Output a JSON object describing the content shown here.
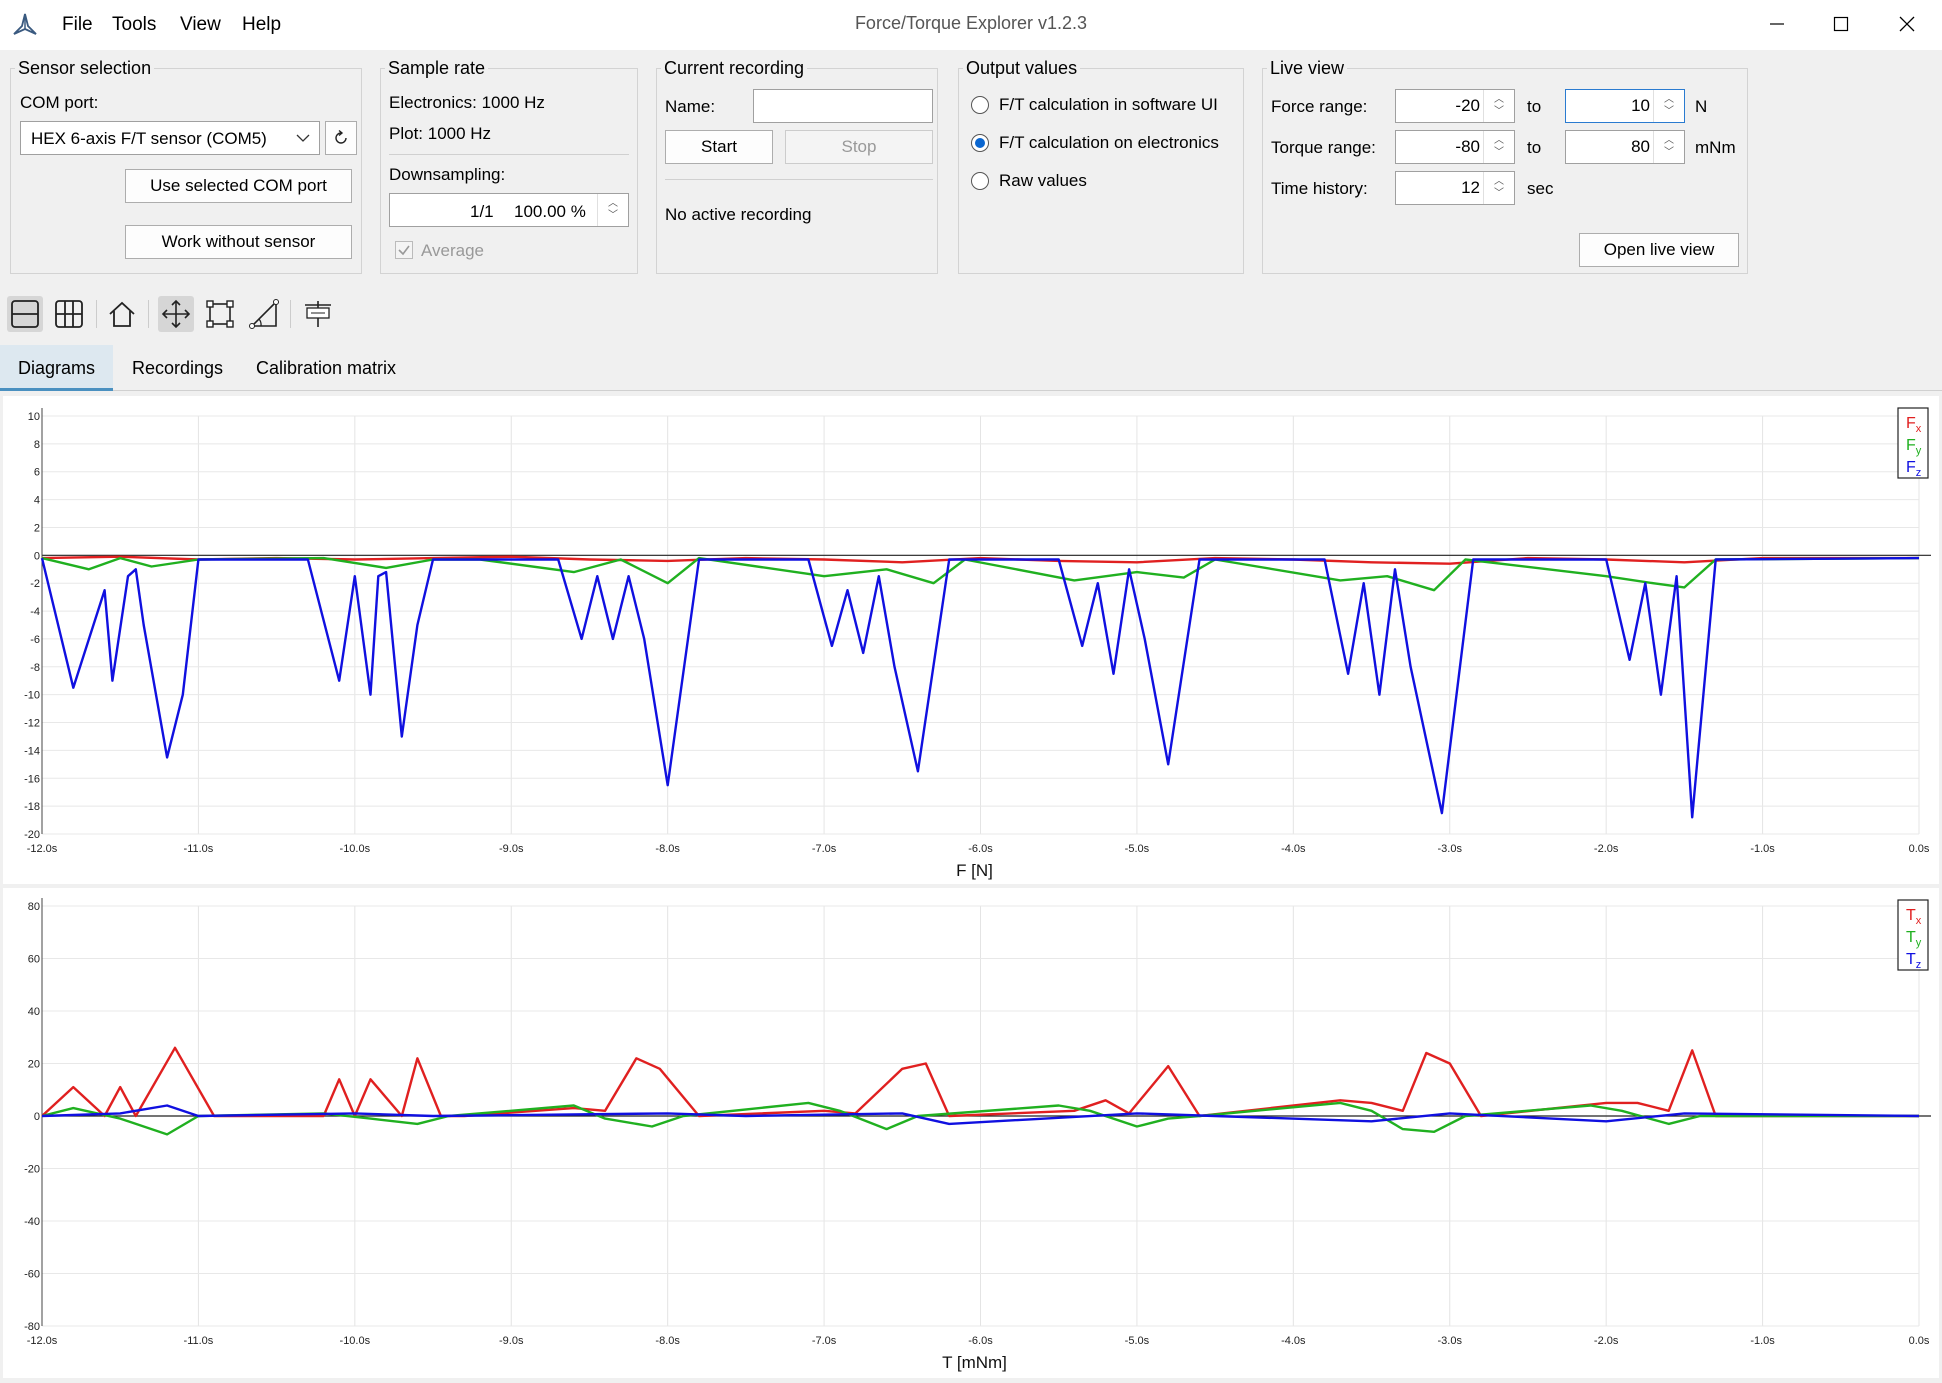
{
  "window": {
    "title": "Force/Torque Explorer v1.2.3",
    "menu": [
      "File",
      "Tools",
      "View",
      "Help"
    ]
  },
  "sensor": {
    "title": "Sensor selection",
    "com_label": "COM port:",
    "com_value": "HEX 6-axis F/T sensor (COM5)",
    "use_btn": "Use selected COM port",
    "work_btn": "Work without sensor"
  },
  "sample": {
    "title": "Sample rate",
    "electronics": "Electronics: 1000 Hz",
    "plot": "Plot: 1000 Hz",
    "downsampling_label": "Downsampling:",
    "downsampling_ratio": "1/1",
    "downsampling_pct": "100.00 %",
    "average_label": "Average"
  },
  "recording": {
    "title": "Current recording",
    "name_label": "Name:",
    "name_value": "",
    "start": "Start",
    "stop": "Stop",
    "status": "No active recording"
  },
  "output": {
    "title": "Output values",
    "options": [
      "F/T calculation in software UI",
      "F/T calculation on electronics",
      "Raw values"
    ],
    "selected": 1
  },
  "live": {
    "title": "Live view",
    "force_label": "Force range:",
    "force_min": "-20",
    "force_max": "10",
    "force_unit": "N",
    "torque_label": "Torque range:",
    "torque_min": "-80",
    "torque_max": "80",
    "torque_unit": "mNm",
    "time_label": "Time history:",
    "time_value": "12",
    "time_unit": "sec",
    "to": "to",
    "open_btn": "Open live view"
  },
  "toolbar_icons": [
    "layout-rows-icon",
    "layout-grid-icon",
    "home-icon",
    "pan-icon",
    "zoom-rect-icon",
    "measure-icon",
    "coordinates-icon"
  ],
  "tabs": [
    "Diagrams",
    "Recordings",
    "Calibration matrix"
  ],
  "colors": {
    "x": "#e02020",
    "y": "#20b020",
    "z": "#1010e0"
  },
  "chart_data": [
    {
      "type": "line",
      "xlabel": "F [N]",
      "x_ticks": [
        "-12.0s",
        "-11.0s",
        "-10.0s",
        "-9.0s",
        "-8.0s",
        "-7.0s",
        "-6.0s",
        "-5.0s",
        "-4.0s",
        "-3.0s",
        "-2.0s",
        "-1.0s",
        "0.0s"
      ],
      "y_ticks": [
        "10",
        "8",
        "6",
        "4",
        "2",
        "0",
        "-2",
        "-4",
        "-6",
        "-8",
        "-10",
        "-12",
        "-14",
        "-16",
        "-18",
        "-20"
      ],
      "xlim": [
        -12,
        0
      ],
      "ylim": [
        -20,
        10
      ],
      "legend": {
        "position": "top-right",
        "entries": [
          {
            "label": "F",
            "sub": "x"
          },
          {
            "label": "F",
            "sub": "y"
          },
          {
            "label": "F",
            "sub": "z"
          }
        ]
      },
      "series": [
        {
          "name": "Fx",
          "x": [
            -12,
            -11.5,
            -11.0,
            -10.5,
            -10.0,
            -9.5,
            -9.0,
            -8.5,
            -8.0,
            -7.5,
            -7.0,
            -6.5,
            -6.0,
            -5.5,
            -5.0,
            -4.5,
            -4.0,
            -3.5,
            -3.0,
            -2.5,
            -2.0,
            -1.5,
            -1.0,
            0
          ],
          "y": [
            -0.2,
            -0.1,
            -0.3,
            -0.2,
            -0.3,
            -0.2,
            -0.1,
            -0.3,
            -0.4,
            -0.2,
            -0.3,
            -0.5,
            -0.2,
            -0.4,
            -0.5,
            -0.2,
            -0.3,
            -0.5,
            -0.6,
            -0.2,
            -0.3,
            -0.5,
            -0.2,
            -0.2
          ]
        },
        {
          "name": "Fy",
          "x": [
            -12,
            -11.7,
            -11.5,
            -11.3,
            -11.0,
            -10.2,
            -9.8,
            -9.5,
            -9.2,
            -8.6,
            -8.3,
            -8.0,
            -7.8,
            -7.0,
            -6.6,
            -6.3,
            -6.1,
            -5.4,
            -5.0,
            -4.7,
            -4.5,
            -3.7,
            -3.4,
            -3.1,
            -2.9,
            -2.0,
            -1.7,
            -1.5,
            -1.3,
            0
          ],
          "y": [
            -0.2,
            -1.0,
            -0.2,
            -0.8,
            -0.3,
            -0.2,
            -0.9,
            -0.3,
            -0.3,
            -1.2,
            -0.3,
            -2.0,
            -0.2,
            -1.5,
            -1.0,
            -2.0,
            -0.3,
            -1.8,
            -1.2,
            -1.6,
            -0.3,
            -1.8,
            -1.5,
            -2.5,
            -0.3,
            -1.5,
            -2.0,
            -2.3,
            -0.3,
            -0.2
          ]
        },
        {
          "name": "Fz",
          "x": [
            -12,
            -11.8,
            -11.6,
            -11.55,
            -11.45,
            -11.4,
            -11.35,
            -11.2,
            -11.1,
            -11.0,
            -10.3,
            -10.1,
            -10.0,
            -9.9,
            -9.85,
            -9.8,
            -9.7,
            -9.6,
            -9.5,
            -8.7,
            -8.55,
            -8.45,
            -8.35,
            -8.25,
            -8.15,
            -8.0,
            -7.8,
            -7.1,
            -6.95,
            -6.85,
            -6.75,
            -6.65,
            -6.55,
            -6.4,
            -6.2,
            -5.5,
            -5.35,
            -5.25,
            -5.15,
            -5.05,
            -4.95,
            -4.8,
            -4.6,
            -3.8,
            -3.65,
            -3.55,
            -3.45,
            -3.35,
            -3.25,
            -3.05,
            -2.85,
            -2.0,
            -1.85,
            -1.75,
            -1.65,
            -1.55,
            -1.45,
            -1.3,
            0
          ],
          "y": [
            -0.2,
            -9.5,
            -2.5,
            -9.0,
            -1.5,
            -1.0,
            -5.0,
            -14.5,
            -10.0,
            -0.3,
            -0.3,
            -9.0,
            -1.5,
            -10.0,
            -1.5,
            -1.2,
            -13.0,
            -5.0,
            -0.3,
            -0.3,
            -6.0,
            -1.5,
            -6.0,
            -1.5,
            -6.0,
            -16.5,
            -0.3,
            -0.3,
            -6.5,
            -2.5,
            -7.0,
            -1.5,
            -8.0,
            -15.5,
            -0.3,
            -0.3,
            -6.5,
            -2.0,
            -8.5,
            -1.0,
            -6.0,
            -15.0,
            -0.3,
            -0.3,
            -8.5,
            -2.0,
            -10.0,
            -1.0,
            -8.0,
            -18.5,
            -0.3,
            -0.3,
            -7.5,
            -2.0,
            -10.0,
            -1.5,
            -18.8,
            -0.3,
            -0.2
          ]
        }
      ]
    },
    {
      "type": "line",
      "xlabel": "T [mNm]",
      "x_ticks": [
        "-12.0s",
        "-11.0s",
        "-10.0s",
        "-9.0s",
        "-8.0s",
        "-7.0s",
        "-6.0s",
        "-5.0s",
        "-4.0s",
        "-3.0s",
        "-2.0s",
        "-1.0s",
        "0.0s"
      ],
      "y_ticks": [
        "80",
        "60",
        "40",
        "20",
        "0",
        "-20",
        "-40",
        "-60",
        "-80"
      ],
      "xlim": [
        -12,
        0
      ],
      "ylim": [
        -80,
        80
      ],
      "legend": {
        "position": "top-right",
        "entries": [
          {
            "label": "T",
            "sub": "x"
          },
          {
            "label": "T",
            "sub": "y"
          },
          {
            "label": "T",
            "sub": "z"
          }
        ]
      },
      "series": [
        {
          "name": "Tx",
          "x": [
            -12,
            -11.8,
            -11.6,
            -11.5,
            -11.4,
            -11.15,
            -10.9,
            -10.2,
            -10.1,
            -10.0,
            -9.9,
            -9.7,
            -9.6,
            -9.45,
            -9.3,
            -8.6,
            -8.4,
            -8.2,
            -8.05,
            -7.8,
            -7.0,
            -6.8,
            -6.5,
            -6.35,
            -6.2,
            -5.4,
            -5.2,
            -5.05,
            -4.8,
            -4.6,
            -3.7,
            -3.5,
            -3.3,
            -3.15,
            -3.0,
            -2.8,
            -2.0,
            -1.8,
            -1.6,
            -1.45,
            -1.3,
            0
          ],
          "y": [
            0,
            11,
            0,
            11,
            0,
            26,
            0,
            0,
            14,
            0,
            14,
            0,
            22,
            0,
            0,
            3,
            2,
            22,
            18,
            0,
            2,
            1,
            18,
            20,
            0,
            2,
            6,
            1,
            19,
            0,
            6,
            5,
            2,
            24,
            20,
            0,
            5,
            5,
            2,
            25,
            0,
            0
          ]
        },
        {
          "name": "Ty",
          "x": [
            -12,
            -11.8,
            -11.5,
            -11.2,
            -11.0,
            -10.2,
            -9.9,
            -9.6,
            -9.4,
            -8.6,
            -8.4,
            -8.1,
            -7.9,
            -7.1,
            -6.9,
            -6.6,
            -6.4,
            -5.5,
            -5.3,
            -5.0,
            -4.8,
            -4.6,
            -3.7,
            -3.5,
            -3.3,
            -3.1,
            -2.9,
            -2.1,
            -1.9,
            -1.6,
            -1.4,
            0
          ],
          "y": [
            0,
            3,
            -1,
            -7,
            0,
            1,
            -1,
            -3,
            0,
            4,
            -1,
            -4,
            0,
            5,
            2,
            -5,
            0,
            4,
            2,
            -4,
            -1,
            0,
            5,
            2,
            -5,
            -6,
            0,
            4,
            2,
            -3,
            0,
            0
          ]
        },
        {
          "name": "Tz",
          "x": [
            -12,
            -11.5,
            -11.2,
            -11.0,
            -10.0,
            -9.5,
            -8.0,
            -7.5,
            -6.5,
            -6.2,
            -5.0,
            -4.5,
            -3.5,
            -3.0,
            -2.0,
            -1.5,
            0
          ],
          "y": [
            0,
            1,
            4,
            0,
            1,
            0,
            1,
            0,
            1,
            -3,
            1,
            0,
            -2,
            1,
            -2,
            1,
            0
          ]
        }
      ]
    }
  ]
}
